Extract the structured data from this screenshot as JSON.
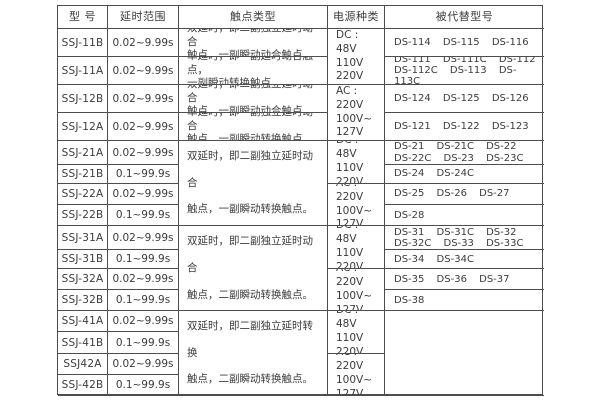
{
  "colors": {
    "border": "#4d4d4d",
    "text": "#3b3b3b",
    "background": "#ffffff"
  },
  "table": {
    "headers": {
      "model": "型 号",
      "range": "延时范围",
      "contact": "触点类型",
      "power": "电源种类",
      "replaced": "被代替型号"
    },
    "rows": [
      {
        "model": "SSJ-11B",
        "range": "0.02~9.99s"
      },
      {
        "model": "SSJ-11A",
        "range": "0.02~9.99s"
      },
      {
        "model": "SSJ-12B",
        "range": "0.02~9.99s"
      },
      {
        "model": "SSJ-12A",
        "range": "0.02~9.99s"
      },
      {
        "model": "SSJ-21A",
        "range": "0.02~9.99s"
      },
      {
        "model": "SSJ-21B",
        "range": "0.1~99.9s"
      },
      {
        "model": "SSJ-22A",
        "range": "0.02~9.99s"
      },
      {
        "model": "SSJ-22B",
        "range": "0.1~99.9s"
      },
      {
        "model": "SSJ-31A",
        "range": "0.02~9.99s"
      },
      {
        "model": "SSJ-31B",
        "range": "0.1~99.9s"
      },
      {
        "model": "SSJ-32A",
        "range": "0.02~9.99s"
      },
      {
        "model": "SSJ-32B",
        "range": "0.1~99.9s"
      },
      {
        "model": "SSJ-41A",
        "range": "0.02~9.99s"
      },
      {
        "model": "SSJ-41B",
        "range": "0.1~99.9s"
      },
      {
        "model": "SSJ42A",
        "range": "0.02~9.99s"
      },
      {
        "model": "SSJ-42B",
        "range": "0.1~99.9s"
      }
    ],
    "contacts": {
      "c1": "双延时，即二副独立延时动合\n触点，一副瞬动动合触点。",
      "c2": "单延时，即一副延时动合触点，\n一副瞬动转换触点。",
      "c3": "双延时，即二副独立延时动合\n触点，一副瞬动动合触点。",
      "c4": "单延时，即一副独立延时动合\n触点，一副瞬动转换触点。",
      "g2": "双延时，即二副独立延时动合\n触点，一副瞬动转换触点。",
      "g3": "双延时，即二副独立延时动合\n触点，二副瞬动转换触点。",
      "g4": "双延时，即二副独立延时转换\n触点，二副瞬动转换触点。"
    },
    "power": {
      "dc": "DC : 48V\n110V\n220V",
      "ac": "AC : 220V\n100V~\n127V"
    },
    "replaced": {
      "p1a": "DS-114 DS-115 DS-116",
      "p1b": "DS-111 DS-111C DS-112\nDS-112C DS-113 DS-113C",
      "p2a": "DS-124 DS-125 DS-126",
      "p2b": "DS-121 DS-122 DS-123",
      "p3a": "DS-21 DS-21C DS-22\nDS-22C DS-23 DS-23C",
      "p3b": "DS-24 DS-24C",
      "p4a": "DS-25 DS-26 DS-27",
      "p4b": "DS-28",
      "p5a": "DS-31 DS-31C DS-32\nDS-32C DS-33 DS-33C",
      "p5b": "DS-34 DS-34C",
      "p6a": "DS-35 DS-36 DS-37",
      "p6b": "DS-38",
      "p7": ""
    }
  }
}
